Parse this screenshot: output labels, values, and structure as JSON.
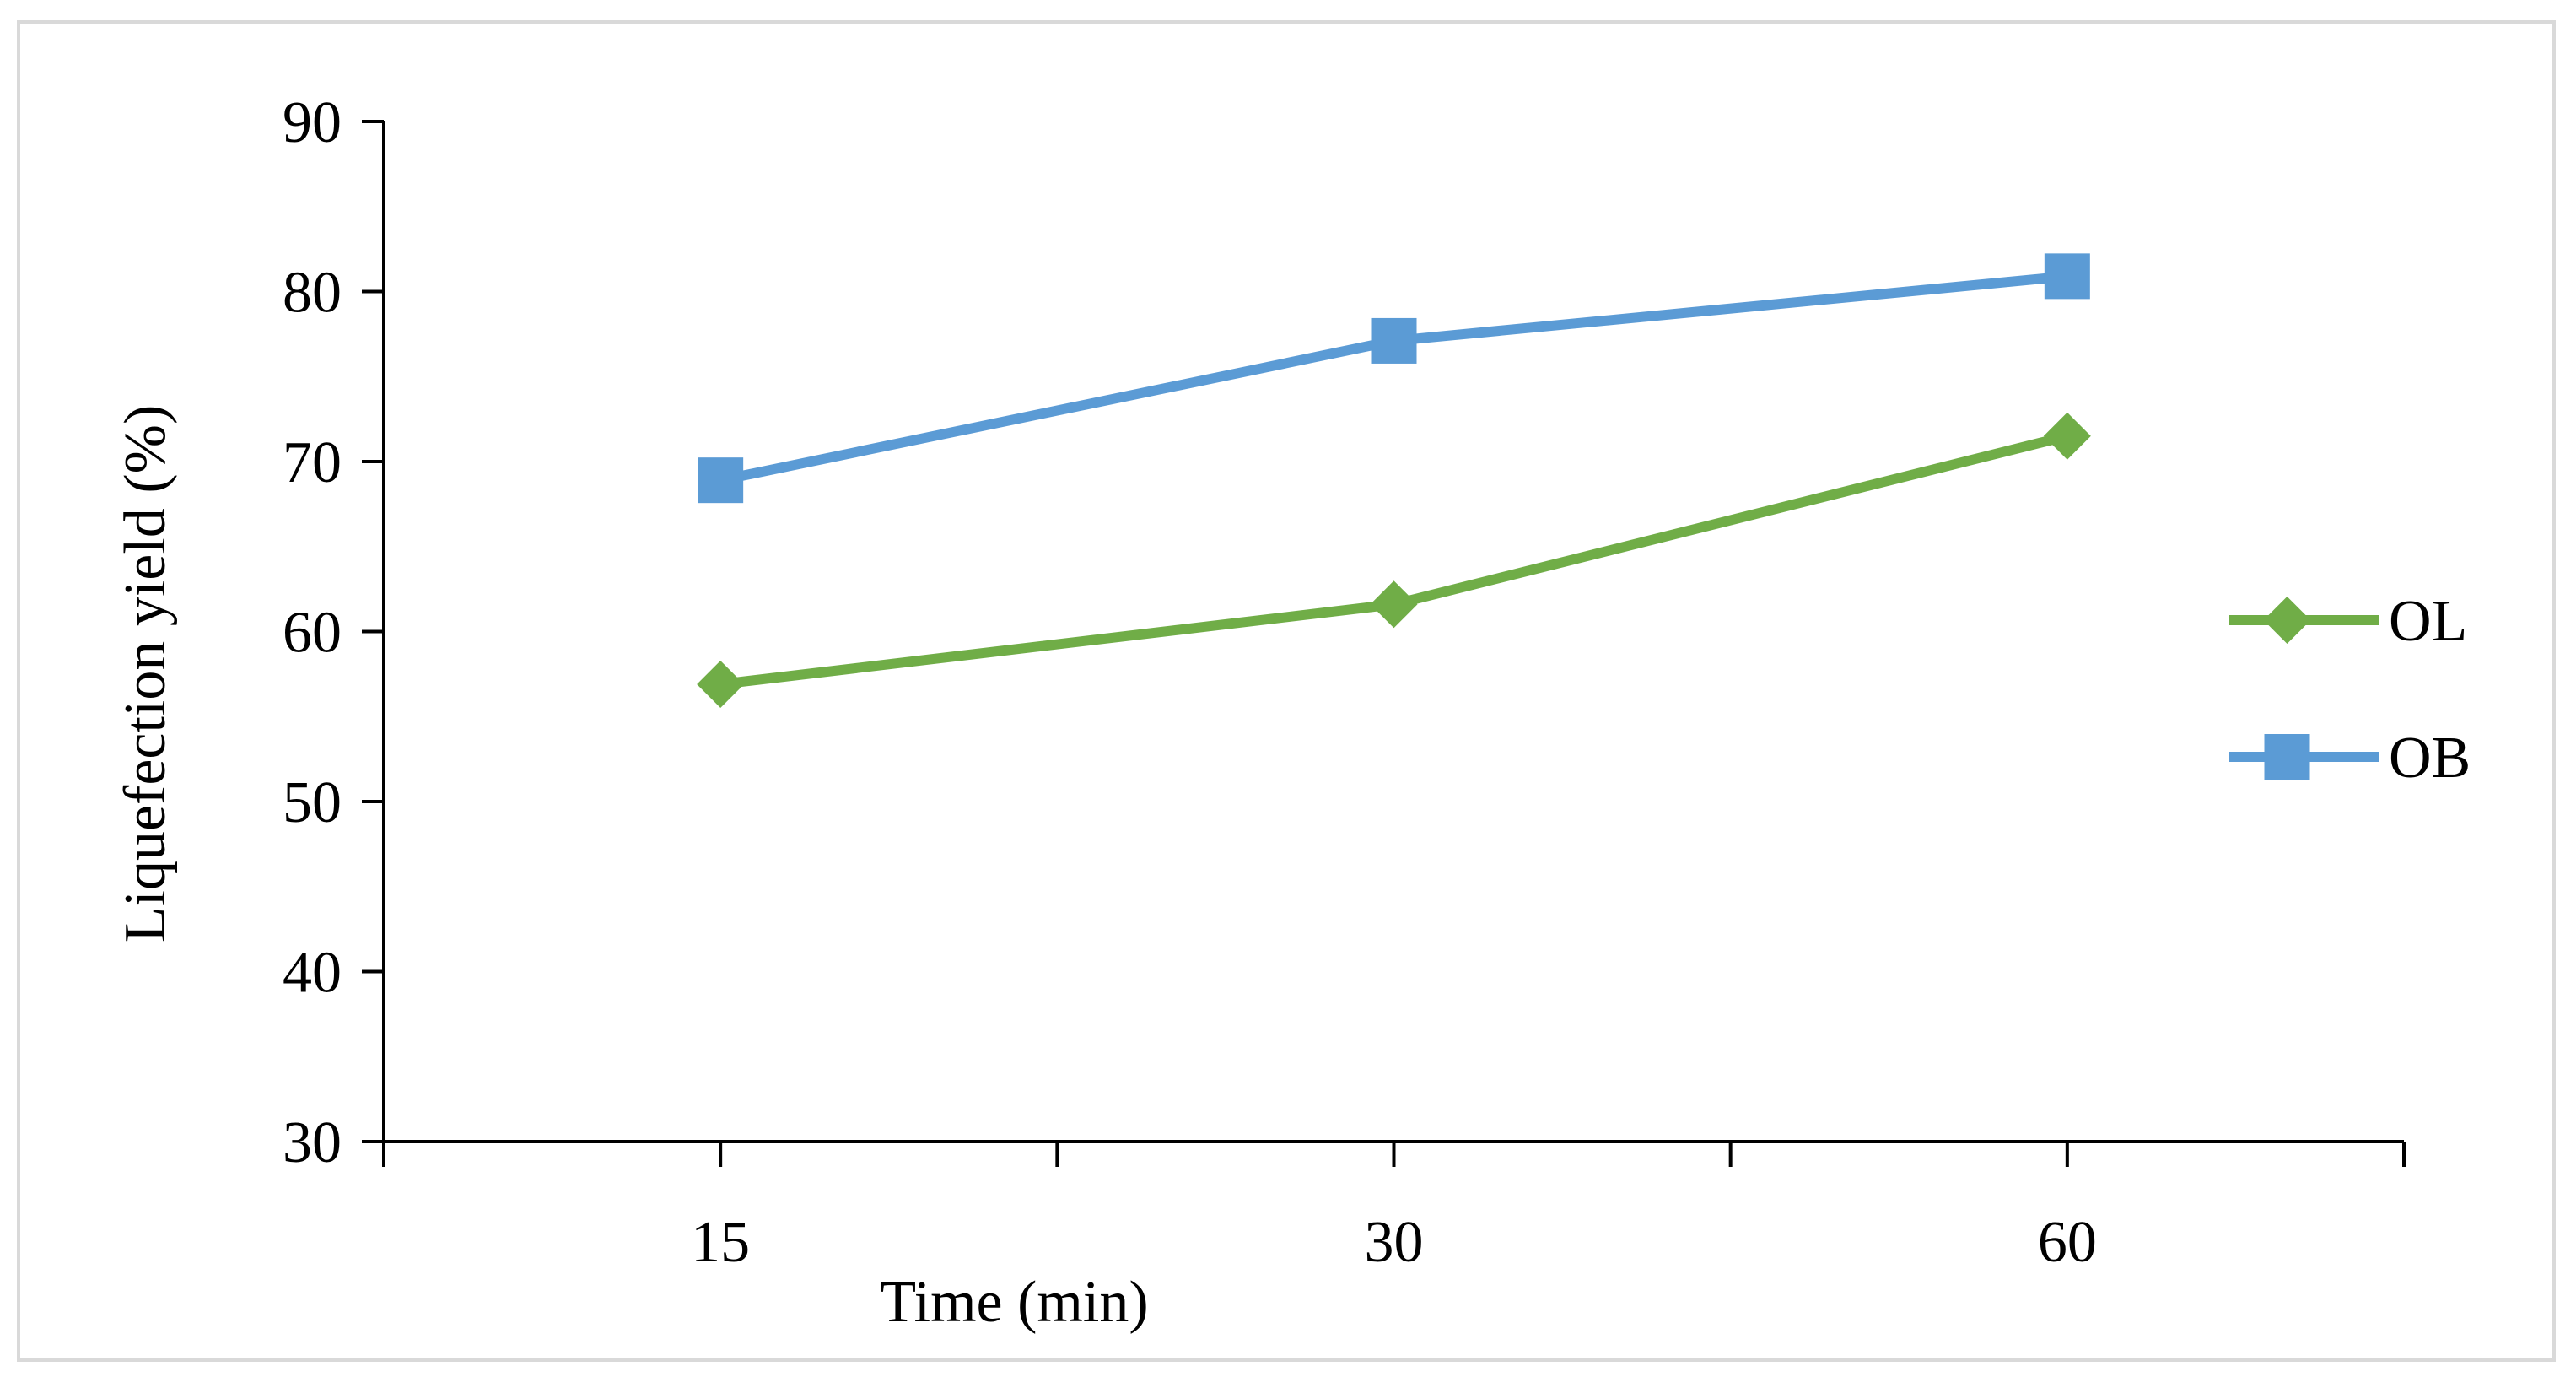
{
  "chart_data": {
    "type": "line",
    "title": "",
    "xlabel": "Time (min)",
    "ylabel": "Liquefection yield (%)",
    "categories": [
      "15",
      "30",
      "60"
    ],
    "ylim": [
      30,
      90
    ],
    "yticks": [
      30,
      40,
      50,
      60,
      70,
      80,
      90
    ],
    "grid": false,
    "legend_position": "right",
    "series": [
      {
        "name": "OL",
        "values": [
          56.9,
          61.6,
          71.5
        ],
        "color": "#70ad47",
        "marker": "diamond"
      },
      {
        "name": "OB",
        "values": [
          68.9,
          77.1,
          80.9
        ],
        "color": "#5b9bd5",
        "marker": "square"
      }
    ]
  }
}
